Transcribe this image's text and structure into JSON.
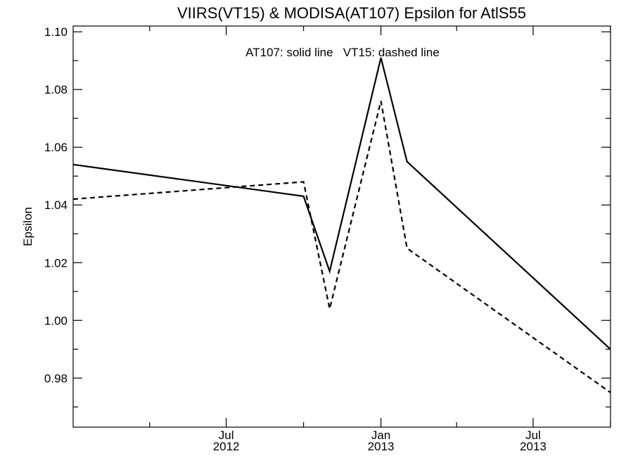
{
  "chart_data": {
    "type": "line",
    "title": "VIIRS(VT15) & MODISA(AT107)  Epsilon for AtlS55",
    "xlabel": "",
    "ylabel": "Epsilon",
    "annotation": "AT107: solid line   VT15: dashed line",
    "xlim": [
      "2012-01-01",
      "2013-10-01"
    ],
    "ylim": [
      0.963,
      1.102
    ],
    "yticks": [
      0.98,
      1.0,
      1.02,
      1.04,
      1.06,
      1.08,
      1.1
    ],
    "ytick_labels": [
      "0.98",
      "1.00",
      "1.02",
      "1.04",
      "1.06",
      "1.08",
      "1.10"
    ],
    "xticks": [
      {
        "date": "2012-07-01",
        "month": "Jul",
        "year": "2012"
      },
      {
        "date": "2013-01-01",
        "month": "Jan",
        "year": "2013"
      },
      {
        "date": "2013-07-01",
        "month": "Jul",
        "year": "2013"
      }
    ],
    "xminor": [
      "2012-04-01",
      "2012-10-01",
      "2013-04-01",
      "2013-10-01"
    ],
    "series": [
      {
        "name": "AT107",
        "style": "solid",
        "x": [
          "2012-01-01",
          "2012-10-01",
          "2012-11-01",
          "2013-01-01",
          "2013-02-01",
          "2013-10-01"
        ],
        "values": [
          1.054,
          1.043,
          1.017,
          1.091,
          1.055,
          0.99
        ]
      },
      {
        "name": "VT15",
        "style": "dashed",
        "x": [
          "2012-01-01",
          "2012-10-01",
          "2012-11-01",
          "2013-01-01",
          "2013-02-01",
          "2013-10-01"
        ],
        "values": [
          1.042,
          1.048,
          1.004,
          1.076,
          1.025,
          0.975
        ]
      }
    ],
    "grid": false,
    "colors": {
      "line": "#000000",
      "background": "#ffffff"
    }
  }
}
